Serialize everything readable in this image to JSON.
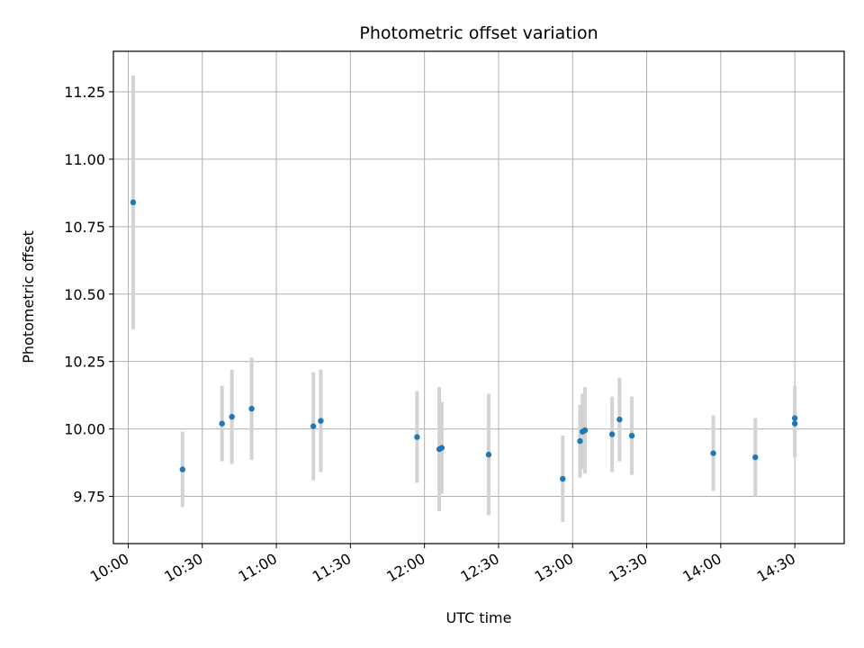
{
  "chart_data": {
    "type": "scatter",
    "title": "Photometric offset variation",
    "xlabel": "UTC time",
    "ylabel": "Photometric offset",
    "x_unit": "time of day (HH:MM)",
    "xlim": [
      "09:54",
      "14:50"
    ],
    "ylim": [
      9.575,
      11.4
    ],
    "x_ticks": [
      "10:00",
      "10:30",
      "11:00",
      "11:30",
      "12:00",
      "12:30",
      "13:00",
      "13:30",
      "14:00",
      "14:30"
    ],
    "y_ticks": [
      "9.75",
      "10.00",
      "10.25",
      "10.50",
      "10.75",
      "11.00",
      "11.25"
    ],
    "grid": true,
    "marker_color": "#1f77b4",
    "errorbar_color": "#d3d3d3",
    "points": [
      {
        "x": "10:02",
        "y": 10.84,
        "err": 0.47
      },
      {
        "x": "10:22",
        "y": 9.85,
        "err": 0.14
      },
      {
        "x": "10:38",
        "y": 10.02,
        "err": 0.14
      },
      {
        "x": "10:42",
        "y": 10.045,
        "err": 0.175
      },
      {
        "x": "10:50",
        "y": 10.075,
        "err": 0.19
      },
      {
        "x": "11:15",
        "y": 10.01,
        "err": 0.2
      },
      {
        "x": "11:18",
        "y": 10.03,
        "err": 0.19
      },
      {
        "x": "11:57",
        "y": 9.97,
        "err": 0.17
      },
      {
        "x": "12:06",
        "y": 9.925,
        "err": 0.23
      },
      {
        "x": "12:07",
        "y": 9.93,
        "err": 0.17
      },
      {
        "x": "12:26",
        "y": 9.905,
        "err": 0.225
      },
      {
        "x": "12:56",
        "y": 9.815,
        "err": 0.16
      },
      {
        "x": "13:03",
        "y": 9.955,
        "err": 0.135
      },
      {
        "x": "13:04",
        "y": 9.99,
        "err": 0.14
      },
      {
        "x": "13:05",
        "y": 9.995,
        "err": 0.16
      },
      {
        "x": "13:16",
        "y": 9.98,
        "err": 0.14
      },
      {
        "x": "13:19",
        "y": 10.035,
        "err": 0.155
      },
      {
        "x": "13:24",
        "y": 9.975,
        "err": 0.145
      },
      {
        "x": "13:57",
        "y": 9.91,
        "err": 0.14
      },
      {
        "x": "14:14",
        "y": 9.895,
        "err": 0.145
      },
      {
        "x": "14:30",
        "y": 10.04,
        "err": 0.12
      },
      {
        "x": "14:30",
        "y": 10.02,
        "err": 0.125
      }
    ]
  }
}
